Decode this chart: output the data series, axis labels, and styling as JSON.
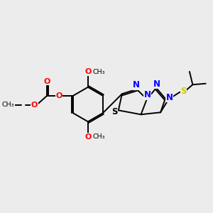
{
  "background_color": "#ececec",
  "bond_color": "#000000",
  "O_color": "#ff0000",
  "N_color": "#0000ff",
  "S_color": "#cccc00",
  "S_ring_color": "#000000",
  "figsize": [
    3.0,
    3.0
  ],
  "dpi": 100,
  "xlim": [
    0,
    10
  ],
  "ylim": [
    0,
    10
  ]
}
